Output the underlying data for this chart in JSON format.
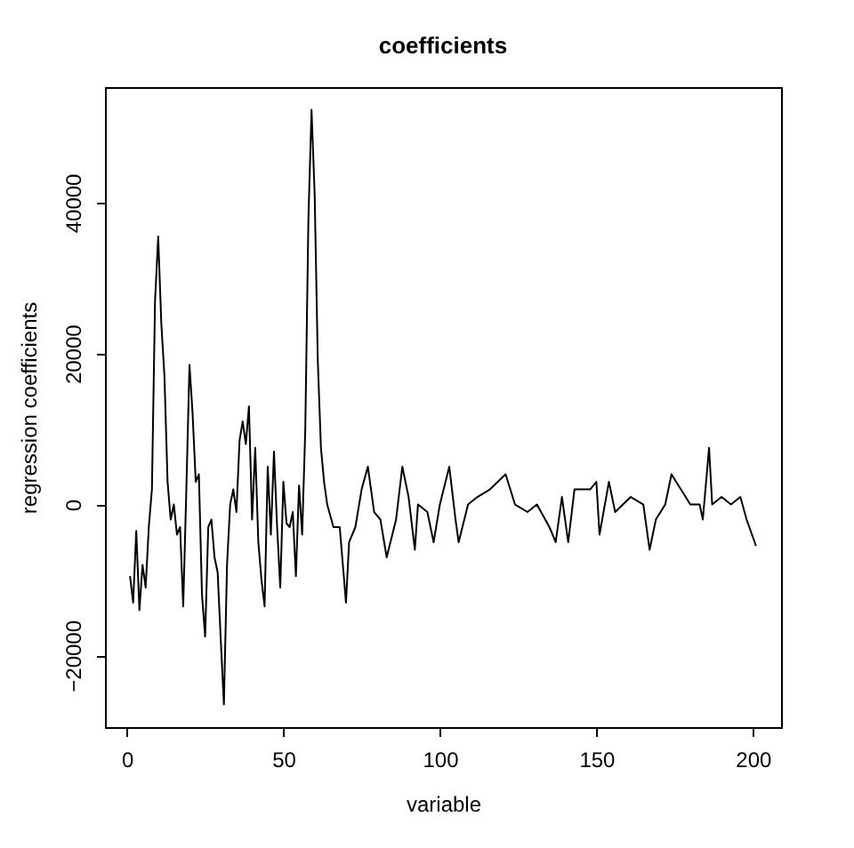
{
  "chart_data": {
    "type": "line",
    "title": "coefficients",
    "xlabel": "variable",
    "ylabel": "regression coefficients",
    "x": [
      1,
      2,
      3,
      4,
      5,
      6,
      7,
      8,
      9,
      10,
      11,
      12,
      13,
      14,
      15,
      16,
      17,
      18,
      19,
      20,
      21,
      22,
      23,
      24,
      25,
      26,
      27,
      28,
      29,
      30,
      31,
      32,
      33,
      34,
      35,
      36,
      37,
      38,
      39,
      40,
      41,
      42,
      43,
      44,
      45,
      46,
      47,
      48,
      49,
      50,
      51,
      52,
      53,
      54,
      55,
      56,
      57,
      58,
      59,
      60,
      61,
      62,
      63,
      64,
      66,
      68,
      70,
      71,
      73,
      75,
      77,
      79,
      81,
      83,
      86,
      88,
      90,
      92,
      93,
      96,
      98,
      100,
      103,
      105,
      106,
      109,
      112,
      116,
      121,
      124,
      128,
      131,
      135,
      137,
      139,
      141,
      143,
      148,
      150,
      151,
      154,
      156,
      161,
      165,
      167,
      169,
      172,
      174,
      177,
      180,
      183,
      184,
      186,
      187,
      190,
      193,
      196,
      198,
      201
    ],
    "series": [
      {
        "color": "#000000",
        "values": [
          -9500,
          -13000,
          -3500,
          -14000,
          -8000,
          -11000,
          -3000,
          2000,
          27000,
          35500,
          24000,
          17000,
          3000,
          -2000,
          0,
          -4000,
          -3000,
          -13500,
          2000,
          18500,
          12000,
          3000,
          4000,
          -12000,
          -17500,
          -3000,
          -2000,
          -7000,
          -9000,
          -18000,
          -26500,
          -8000,
          0,
          2000,
          -1000,
          8500,
          11000,
          8000,
          13000,
          -2000,
          7500,
          -5000,
          -10000,
          -13500,
          5000,
          -4000,
          7000,
          -3000,
          -11000,
          3000,
          -2500,
          -3000,
          -1000,
          -9500,
          2500,
          -4000,
          10000,
          38000,
          52300,
          41000,
          19000,
          7500,
          3000,
          0,
          -3000,
          -3000,
          -13000,
          -5000,
          -3000,
          2000,
          5000,
          -1000,
          -2000,
          -7000,
          -2000,
          5000,
          1000,
          -6000,
          0,
          -1000,
          -5000,
          0,
          5000,
          -2000,
          -5000,
          0,
          1000,
          2000,
          4000,
          0,
          -1000,
          0,
          -3000,
          -5000,
          1000,
          -5000,
          2000,
          2000,
          3000,
          -4000,
          3000,
          -1000,
          1000,
          0,
          -6000,
          -2000,
          0,
          4000,
          2000,
          0,
          0,
          -2000,
          7500,
          0,
          1000,
          0,
          1000,
          -2000,
          -5500
        ]
      }
    ],
    "xlim": [
      -7,
      209
    ],
    "ylim": [
      -29500,
      55300
    ],
    "xticks": [
      0,
      50,
      100,
      150,
      200
    ],
    "yticks": [
      -20000,
      0,
      20000,
      40000
    ],
    "grid": false,
    "legend": false,
    "marker": "none",
    "line_style": "solid"
  }
}
